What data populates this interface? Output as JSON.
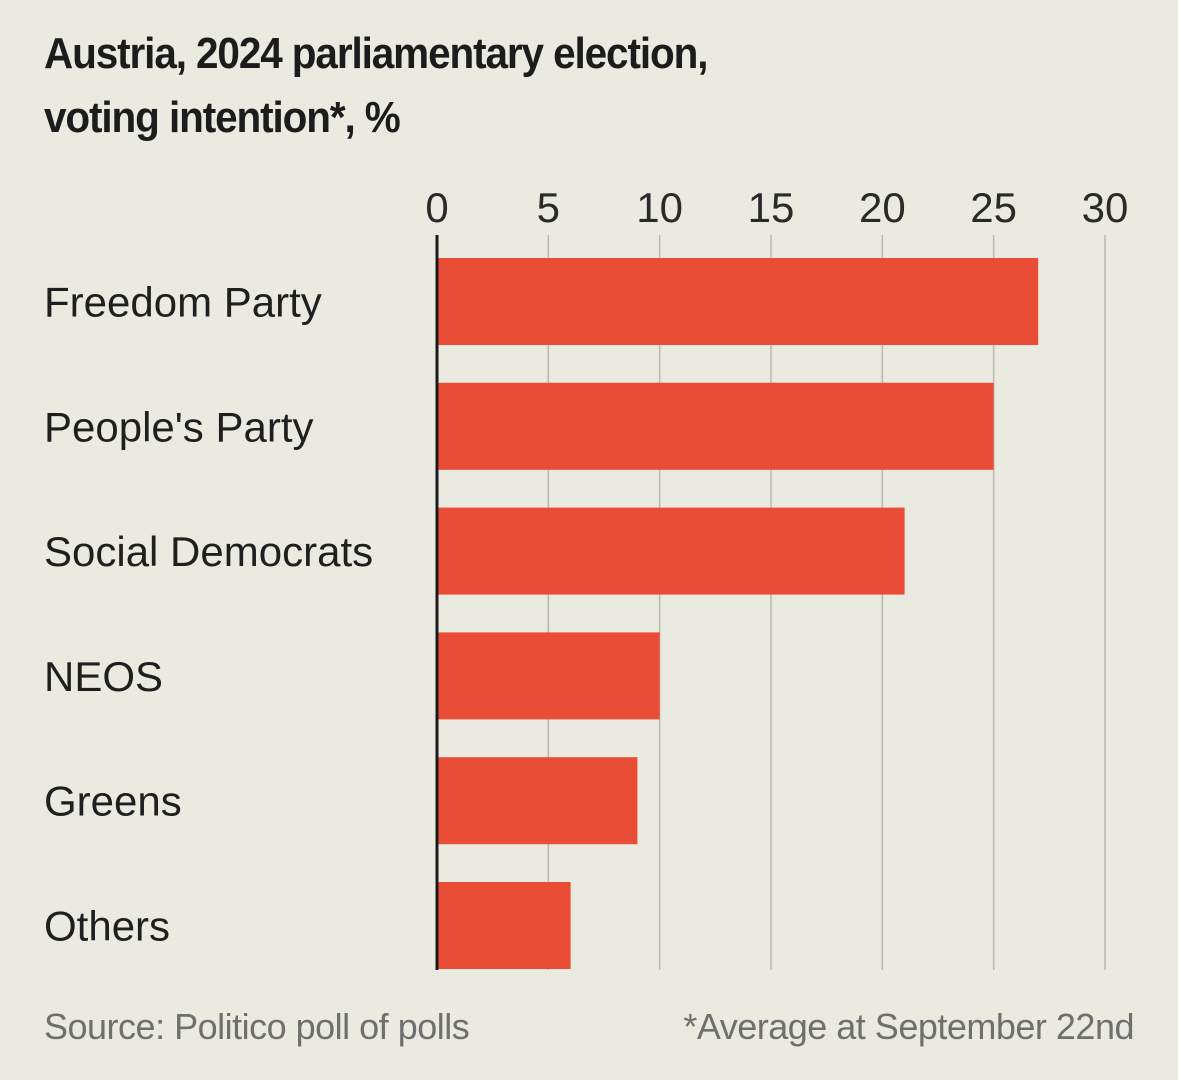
{
  "chart_data": {
    "type": "bar",
    "orientation": "horizontal",
    "title": "Austria, 2024 parliamentary election, voting intention*, %",
    "title_lines": [
      "Austria, 2024 parliamentary election,",
      "voting intention*, %"
    ],
    "categories": [
      "Freedom Party",
      "People's Party",
      "Social Democrats",
      "NEOS",
      "Greens",
      "Others"
    ],
    "values": [
      27,
      25,
      21,
      10,
      9,
      6
    ],
    "xlabel": "",
    "ylabel": "",
    "xlim": [
      0,
      30
    ],
    "xticks": [
      0,
      5,
      10,
      15,
      20,
      25,
      30
    ],
    "xtick_labels": [
      "0",
      "5",
      "10",
      "15",
      "20",
      "25",
      "30"
    ],
    "xaxis_position": "top",
    "grid": true,
    "legend": "none",
    "bar_color": "#ea4d36",
    "source": "Source: Politico poll of polls",
    "footnote": "*Average at September 22nd"
  }
}
